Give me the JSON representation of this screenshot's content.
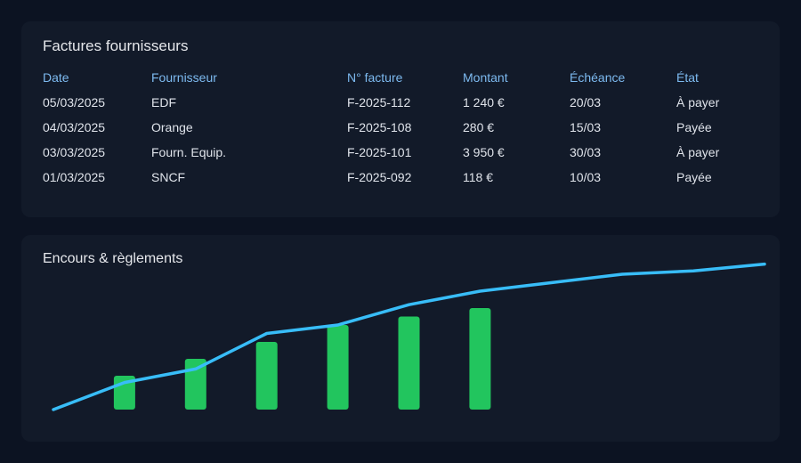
{
  "invoices": {
    "title": "Factures fournisseurs",
    "columns": [
      "Date",
      "Fournisseur",
      "N° facture",
      "Montant",
      "Échéance",
      "État"
    ],
    "rows": [
      [
        "05/03/2025",
        "EDF",
        "F-2025-112",
        "1 240 €",
        "20/03",
        "À payer"
      ],
      [
        "04/03/2025",
        "Orange",
        "F-2025-108",
        "280 €",
        "15/03",
        "Payée"
      ],
      [
        "03/03/2025",
        "Fourn. Equip.",
        "F-2025-101",
        "3 950 €",
        "30/03",
        "À payer"
      ],
      [
        "01/03/2025",
        "SNCF",
        "F-2025-092",
        "118 €",
        "10/03",
        "Payée"
      ]
    ]
  },
  "chart": {
    "title": "Encours & règlements"
  },
  "chart_data": {
    "type": "bar",
    "title": "Encours & règlements",
    "xlabel": "",
    "ylabel": "",
    "ylim": [
      0,
      100
    ],
    "grid": false,
    "series": [
      {
        "type": "bar",
        "color": "#22c55e",
        "x": [
          2,
          3,
          4,
          5,
          6,
          7
        ],
        "values": [
          20,
          30,
          40,
          50,
          55,
          60
        ]
      },
      {
        "type": "line",
        "color": "#38bdf8",
        "x": [
          1,
          2,
          3,
          4,
          5,
          6,
          7,
          8,
          9,
          10,
          11
        ],
        "values": [
          0,
          16,
          24,
          45,
          50,
          62,
          70,
          75,
          80,
          82,
          86
        ]
      }
    ],
    "x_range": [
      1,
      11
    ]
  },
  "colors": {
    "background": "#0c1322",
    "card": "#121a29",
    "header_text": "#7dbaf0",
    "body_text": "#dfe3ea",
    "bar": "#22c55e",
    "line": "#38bdf8"
  }
}
